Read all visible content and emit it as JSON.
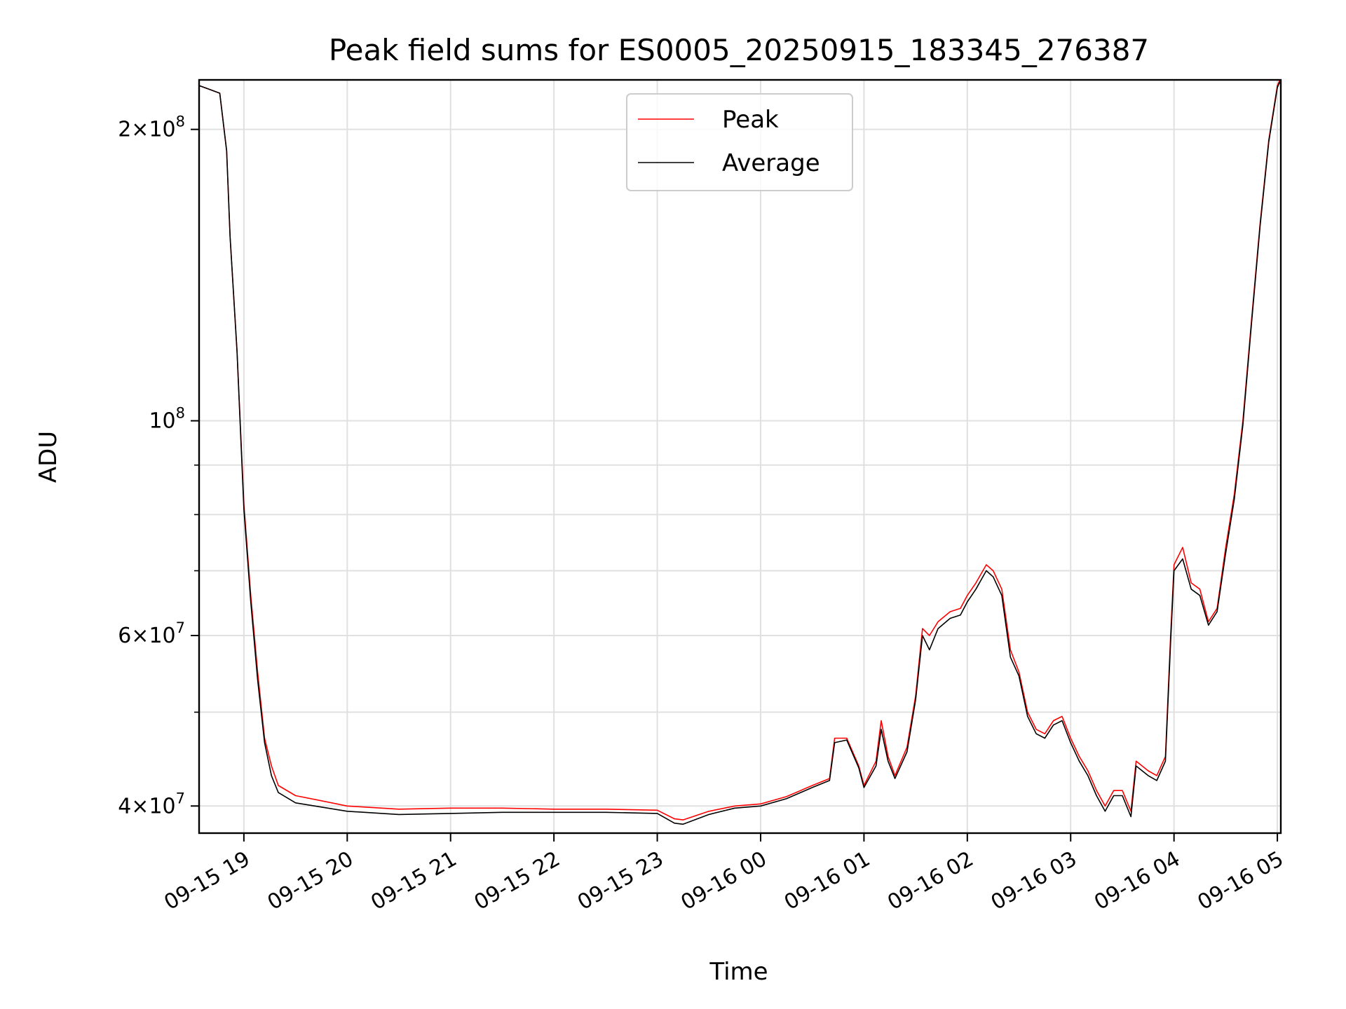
{
  "chart_data": {
    "type": "line",
    "title": "Peak field sums for ES0005_20250915_183345_276387",
    "xlabel": "Time",
    "ylabel": "ADU",
    "y_scale": "log",
    "ylim": [
      37500000,
      225000000
    ],
    "xlim": [
      "2025-09-15 18:34",
      "2025-09-16 05:02"
    ],
    "grid": true,
    "legend_placement": "top-center",
    "x_ticks": [
      {
        "value": "2025-09-15 19:00",
        "label": "09-15 19"
      },
      {
        "value": "2025-09-15 20:00",
        "label": "09-15 20"
      },
      {
        "value": "2025-09-15 21:00",
        "label": "09-15 21"
      },
      {
        "value": "2025-09-15 22:00",
        "label": "09-15 22"
      },
      {
        "value": "2025-09-15 23:00",
        "label": "09-15 23"
      },
      {
        "value": "2025-09-16 00:00",
        "label": "09-16 00"
      },
      {
        "value": "2025-09-16 01:00",
        "label": "09-16 01"
      },
      {
        "value": "2025-09-16 02:00",
        "label": "09-16 02"
      },
      {
        "value": "2025-09-16 03:00",
        "label": "09-16 03"
      },
      {
        "value": "2025-09-16 04:00",
        "label": "09-16 04"
      },
      {
        "value": "2025-09-16 05:00",
        "label": "09-16 05"
      }
    ],
    "y_major_ticks": [
      {
        "value": 40000000,
        "mantissa": "4",
        "exp": "7"
      },
      {
        "value": 60000000,
        "mantissa": "6",
        "exp": "7"
      },
      {
        "value": 100000000,
        "mantissa": "",
        "exp": "8"
      },
      {
        "value": 200000000,
        "mantissa": "2",
        "exp": "8"
      }
    ],
    "y_minor_ticks": [
      50000000,
      70000000,
      80000000,
      90000000
    ],
    "series": [
      {
        "name": "Peak",
        "color": "#ff0000",
        "points": [
          [
            "2025-09-15 18:34",
            222000000
          ],
          [
            "2025-09-15 18:40",
            220000000
          ],
          [
            "2025-09-15 18:46",
            218000000
          ],
          [
            "2025-09-15 18:50",
            190000000
          ],
          [
            "2025-09-15 18:52",
            155000000
          ],
          [
            "2025-09-15 18:56",
            118000000
          ],
          [
            "2025-09-15 19:00",
            82000000
          ],
          [
            "2025-09-15 19:04",
            66000000
          ],
          [
            "2025-09-15 19:08",
            55000000
          ],
          [
            "2025-09-15 19:12",
            47000000
          ],
          [
            "2025-09-15 19:16",
            44000000
          ],
          [
            "2025-09-15 19:20",
            42000000
          ],
          [
            "2025-09-15 19:30",
            41000000
          ],
          [
            "2025-09-15 19:45",
            40500000
          ],
          [
            "2025-09-15 20:00",
            40000000
          ],
          [
            "2025-09-15 20:30",
            39700000
          ],
          [
            "2025-09-15 21:00",
            39800000
          ],
          [
            "2025-09-15 21:30",
            39800000
          ],
          [
            "2025-09-15 22:00",
            39700000
          ],
          [
            "2025-09-15 22:30",
            39700000
          ],
          [
            "2025-09-15 23:00",
            39600000
          ],
          [
            "2025-09-15 23:10",
            38800000
          ],
          [
            "2025-09-15 23:15",
            38700000
          ],
          [
            "2025-09-15 23:30",
            39500000
          ],
          [
            "2025-09-15 23:45",
            40000000
          ],
          [
            "2025-09-16 00:00",
            40200000
          ],
          [
            "2025-09-16 00:15",
            40900000
          ],
          [
            "2025-09-16 00:30",
            42000000
          ],
          [
            "2025-09-16 00:40",
            42700000
          ],
          [
            "2025-09-16 00:43",
            47000000
          ],
          [
            "2025-09-16 00:50",
            47000000
          ],
          [
            "2025-09-16 00:57",
            44000000
          ],
          [
            "2025-09-16 01:00",
            42000000
          ],
          [
            "2025-09-16 01:07",
            44500000
          ],
          [
            "2025-09-16 01:10",
            49000000
          ],
          [
            "2025-09-16 01:14",
            45000000
          ],
          [
            "2025-09-16 01:18",
            43000000
          ],
          [
            "2025-09-16 01:25",
            46000000
          ],
          [
            "2025-09-16 01:30",
            52000000
          ],
          [
            "2025-09-16 01:34",
            61000000
          ],
          [
            "2025-09-16 01:38",
            60000000
          ],
          [
            "2025-09-16 01:43",
            62000000
          ],
          [
            "2025-09-16 01:50",
            63500000
          ],
          [
            "2025-09-16 01:56",
            64000000
          ],
          [
            "2025-09-16 02:00",
            66000000
          ],
          [
            "2025-09-16 02:05",
            68000000
          ],
          [
            "2025-09-16 02:11",
            71000000
          ],
          [
            "2025-09-16 02:15",
            70000000
          ],
          [
            "2025-09-16 02:20",
            67000000
          ],
          [
            "2025-09-16 02:25",
            58000000
          ],
          [
            "2025-09-16 02:30",
            55000000
          ],
          [
            "2025-09-16 02:35",
            50000000
          ],
          [
            "2025-09-16 02:40",
            48000000
          ],
          [
            "2025-09-16 02:45",
            47500000
          ],
          [
            "2025-09-16 02:50",
            49000000
          ],
          [
            "2025-09-16 02:55",
            49500000
          ],
          [
            "2025-09-16 03:00",
            47000000
          ],
          [
            "2025-09-16 03:05",
            45000000
          ],
          [
            "2025-09-16 03:10",
            43500000
          ],
          [
            "2025-09-16 03:15",
            41500000
          ],
          [
            "2025-09-16 03:20",
            40000000
          ],
          [
            "2025-09-16 03:25",
            41500000
          ],
          [
            "2025-09-16 03:30",
            41500000
          ],
          [
            "2025-09-16 03:35",
            39500000
          ],
          [
            "2025-09-16 03:38",
            44500000
          ],
          [
            "2025-09-16 03:45",
            43500000
          ],
          [
            "2025-09-16 03:50",
            43000000
          ],
          [
            "2025-09-16 03:55",
            45000000
          ],
          [
            "2025-09-16 03:58",
            60000000
          ],
          [
            "2025-09-16 04:00",
            71000000
          ],
          [
            "2025-09-16 04:05",
            74000000
          ],
          [
            "2025-09-16 04:10",
            68000000
          ],
          [
            "2025-09-16 04:15",
            67000000
          ],
          [
            "2025-09-16 04:20",
            62000000
          ],
          [
            "2025-09-16 04:25",
            64000000
          ],
          [
            "2025-09-16 04:30",
            74000000
          ],
          [
            "2025-09-16 04:35",
            84000000
          ],
          [
            "2025-09-16 04:40",
            100000000
          ],
          [
            "2025-09-16 04:45",
            127000000
          ],
          [
            "2025-09-16 04:50",
            160000000
          ],
          [
            "2025-09-16 04:55",
            195000000
          ],
          [
            "2025-09-16 05:00",
            222000000
          ],
          [
            "2025-09-16 05:02",
            226000000
          ]
        ]
      },
      {
        "name": "Average",
        "color": "#000000",
        "points": [
          [
            "2025-09-15 18:34",
            222000000
          ],
          [
            "2025-09-15 18:40",
            220000000
          ],
          [
            "2025-09-15 18:46",
            218000000
          ],
          [
            "2025-09-15 18:50",
            190000000
          ],
          [
            "2025-09-15 18:52",
            155000000
          ],
          [
            "2025-09-15 18:56",
            118000000
          ],
          [
            "2025-09-15 19:00",
            81000000
          ],
          [
            "2025-09-15 19:04",
            65000000
          ],
          [
            "2025-09-15 19:08",
            54000000
          ],
          [
            "2025-09-15 19:12",
            46500000
          ],
          [
            "2025-09-15 19:16",
            43000000
          ],
          [
            "2025-09-15 19:20",
            41300000
          ],
          [
            "2025-09-15 19:30",
            40300000
          ],
          [
            "2025-09-15 19:45",
            39900000
          ],
          [
            "2025-09-15 20:00",
            39500000
          ],
          [
            "2025-09-15 20:30",
            39200000
          ],
          [
            "2025-09-15 21:00",
            39300000
          ],
          [
            "2025-09-15 21:30",
            39400000
          ],
          [
            "2025-09-15 22:00",
            39400000
          ],
          [
            "2025-09-15 22:30",
            39400000
          ],
          [
            "2025-09-15 23:00",
            39300000
          ],
          [
            "2025-09-15 23:10",
            38400000
          ],
          [
            "2025-09-15 23:15",
            38300000
          ],
          [
            "2025-09-15 23:30",
            39200000
          ],
          [
            "2025-09-15 23:45",
            39800000
          ],
          [
            "2025-09-16 00:00",
            40000000
          ],
          [
            "2025-09-16 00:15",
            40700000
          ],
          [
            "2025-09-16 00:30",
            41800000
          ],
          [
            "2025-09-16 00:40",
            42500000
          ],
          [
            "2025-09-16 00:43",
            46500000
          ],
          [
            "2025-09-16 00:50",
            46800000
          ],
          [
            "2025-09-16 00:57",
            43800000
          ],
          [
            "2025-09-16 01:00",
            41800000
          ],
          [
            "2025-09-16 01:07",
            44000000
          ],
          [
            "2025-09-16 01:10",
            48000000
          ],
          [
            "2025-09-16 01:14",
            44500000
          ],
          [
            "2025-09-16 01:18",
            42700000
          ],
          [
            "2025-09-16 01:25",
            45500000
          ],
          [
            "2025-09-16 01:30",
            51500000
          ],
          [
            "2025-09-16 01:34",
            60000000
          ],
          [
            "2025-09-16 01:38",
            58000000
          ],
          [
            "2025-09-16 01:43",
            61000000
          ],
          [
            "2025-09-16 01:50",
            62500000
          ],
          [
            "2025-09-16 01:56",
            63000000
          ],
          [
            "2025-09-16 02:00",
            65000000
          ],
          [
            "2025-09-16 02:05",
            67000000
          ],
          [
            "2025-09-16 02:11",
            70000000
          ],
          [
            "2025-09-16 02:15",
            69000000
          ],
          [
            "2025-09-16 02:20",
            66000000
          ],
          [
            "2025-09-16 02:25",
            57000000
          ],
          [
            "2025-09-16 02:30",
            54500000
          ],
          [
            "2025-09-16 02:35",
            49500000
          ],
          [
            "2025-09-16 02:40",
            47500000
          ],
          [
            "2025-09-16 02:45",
            47000000
          ],
          [
            "2025-09-16 02:50",
            48500000
          ],
          [
            "2025-09-16 02:55",
            49000000
          ],
          [
            "2025-09-16 03:00",
            46500000
          ],
          [
            "2025-09-16 03:05",
            44500000
          ],
          [
            "2025-09-16 03:10",
            43000000
          ],
          [
            "2025-09-16 03:15",
            41000000
          ],
          [
            "2025-09-16 03:20",
            39500000
          ],
          [
            "2025-09-16 03:25",
            41000000
          ],
          [
            "2025-09-16 03:30",
            41000000
          ],
          [
            "2025-09-16 03:35",
            39000000
          ],
          [
            "2025-09-16 03:38",
            44000000
          ],
          [
            "2025-09-16 03:45",
            43000000
          ],
          [
            "2025-09-16 03:50",
            42500000
          ],
          [
            "2025-09-16 03:55",
            44500000
          ],
          [
            "2025-09-16 03:58",
            59000000
          ],
          [
            "2025-09-16 04:00",
            70000000
          ],
          [
            "2025-09-16 04:05",
            72000000
          ],
          [
            "2025-09-16 04:10",
            67000000
          ],
          [
            "2025-09-16 04:15",
            66000000
          ],
          [
            "2025-09-16 04:20",
            61500000
          ],
          [
            "2025-09-16 04:25",
            63500000
          ],
          [
            "2025-09-16 04:30",
            73000000
          ],
          [
            "2025-09-16 04:35",
            83000000
          ],
          [
            "2025-09-16 04:40",
            99000000
          ],
          [
            "2025-09-16 04:45",
            126000000
          ],
          [
            "2025-09-16 04:50",
            159000000
          ],
          [
            "2025-09-16 04:55",
            194000000
          ],
          [
            "2025-09-16 05:00",
            221000000
          ],
          [
            "2025-09-16 05:02",
            225000000
          ]
        ]
      }
    ]
  }
}
